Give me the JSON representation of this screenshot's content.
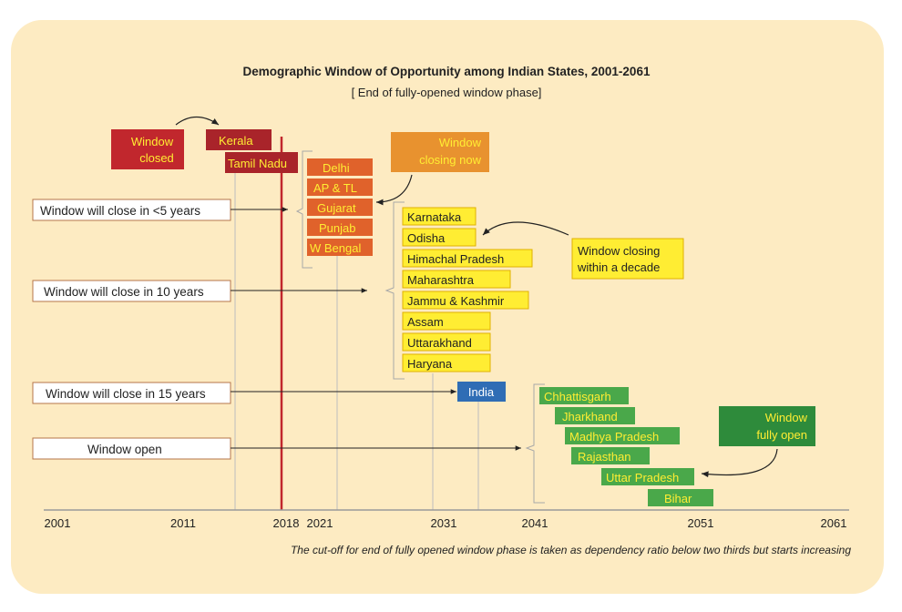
{
  "title": "Demographic Window of Opportunity among Indian States, 2001-2061",
  "subtitle": "[ End of fully-opened window phase]",
  "footnote": "The cut-off for end of fully opened window phase is taken as dependency ratio below two thirds but starts increasing",
  "colors": {
    "closed": "#c1272d",
    "closing_now": "#e0622b",
    "decade": "#ffed33",
    "india": "#2f6db5",
    "open": "#4aa84a",
    "open_dark": "#2e8b3b",
    "reference_line": "#c1272d",
    "panel": "#fdebc2"
  },
  "axis": {
    "ticks": [
      "2001",
      "2011",
      "2018",
      "2021",
      "2031",
      "2041",
      "2051",
      "2061"
    ]
  },
  "callouts": {
    "window_closed": "Window closed",
    "window_closing_now": "Window closing now",
    "window_closing_decade": "Window closing within a decade",
    "window_fully_open": "Window fully open"
  },
  "categories": {
    "lt5": "Window will close in <5 years",
    "y10": "Window will close in 10 years",
    "y15": "Window will close in 15 years",
    "open": "Window open"
  },
  "states": {
    "closed": [
      "Kerala",
      "Tamil Nadu"
    ],
    "closing_now": [
      "Delhi",
      "AP & TL",
      "Gujarat",
      "Punjab",
      "W Bengal"
    ],
    "decade": [
      "Karnataka",
      "Odisha",
      "Himachal Pradesh",
      "Maharashtra",
      "Jammu & Kashmir",
      "Assam",
      "Uttarakhand",
      "Haryana"
    ],
    "india": "India",
    "open": [
      "Chhattisgarh",
      "Jharkhand",
      "Madhya Pradesh",
      "Rajasthan",
      "Uttar Pradesh",
      "Bihar"
    ]
  }
}
